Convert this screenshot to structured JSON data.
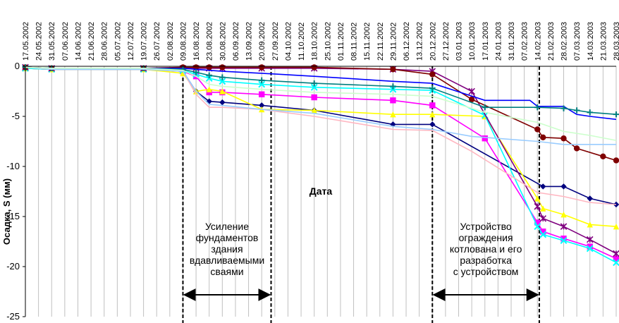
{
  "chart_data": {
    "type": "line",
    "ylabel": "Осадка, S (мм)",
    "xlabel": "Дата",
    "ylim": [
      -25,
      0
    ],
    "y_ticks": [
      0,
      -5,
      -10,
      -15,
      -20,
      -25
    ],
    "grid": "vertical",
    "x_ticks": [
      "17.05.2002",
      "24.05.2002",
      "31.05.2002",
      "07.06.2002",
      "14.06.2002",
      "21.06.2002",
      "28.06.2002",
      "05.07.2002",
      "12.07.2002",
      "19.07.2002",
      "26.07.2002",
      "02.08.2002",
      "09.08.2002",
      "16.08.2002",
      "23.08.2002",
      "30.08.2002",
      "06.09.2002",
      "13.09.2002",
      "20.09.2002",
      "27.09.2002",
      "04.10.2002",
      "11.10.2002",
      "18.10.2002",
      "25.10.2002",
      "01.11.2002",
      "08.11.2002",
      "15.11.2002",
      "22.11.2002",
      "29.11.2002",
      "06.12.2002",
      "13.12.2002",
      "20.12.2002",
      "27.12.2002",
      "03.01.2003",
      "10.01.2003",
      "17.01.2003",
      "24.01.2003",
      "31.01.2003",
      "07.02.2003",
      "14.02.2003",
      "21.02.2003",
      "28.02.2003",
      "07.03.2003",
      "14.03.2003",
      "21.03.2003",
      "28.03.2003"
    ],
    "x_start": "17.05.2002",
    "annotations": [
      {
        "lines": [
          "Усиление",
          "фундаментов",
          "здания",
          "вдавливаемыми",
          "сваями"
        ],
        "range": [
          "09.08.2002",
          "25.09.2002"
        ]
      },
      {
        "lines": [
          "Устройство",
          "ограждения",
          "котлована и его",
          "разработка",
          "с устройством"
        ],
        "range": [
          "20.12.2002",
          "15.02.2003"
        ]
      }
    ],
    "series": [
      {
        "color": "#00007f",
        "marker": "diamond",
        "x": [
          "17.05.2002",
          "31.05.2002",
          "19.07.2002",
          "09.08.2002",
          "16.08.2002",
          "23.08.2002",
          "30.08.2002",
          "20.09.2002",
          "18.10.2002",
          "29.11.2002",
          "20.12.2002",
          "17.02.2003",
          "28.02.2003",
          "14.03.2003",
          "28.03.2003"
        ],
        "y": [
          -0.2,
          -0.3,
          -0.3,
          -0.5,
          -2.5,
          -3.5,
          -3.6,
          -3.9,
          -4.4,
          -5.8,
          -5.8,
          -12.0,
          -12.0,
          -13.2,
          -13.8
        ]
      },
      {
        "color": "#ff00ff",
        "marker": "square",
        "x": [
          "17.05.2002",
          "31.05.2002",
          "19.07.2002",
          "09.08.2002",
          "16.08.2002",
          "23.08.2002",
          "30.08.2002",
          "20.09.2002",
          "18.10.2002",
          "29.11.2002",
          "20.12.2002",
          "17.01.2003",
          "14.02.2003",
          "17.02.2003",
          "28.02.2003",
          "14.03.2003",
          "28.03.2003"
        ],
        "y": [
          -0.2,
          -0.3,
          -0.3,
          -0.5,
          -1.0,
          -2.6,
          -2.6,
          -2.8,
          -3.1,
          -3.4,
          -3.9,
          -7.2,
          -15.6,
          -16.5,
          -17.2,
          -18.0,
          -19.2
        ]
      },
      {
        "color": "#ffff00",
        "marker": "triangle",
        "x": [
          "17.05.2002",
          "31.05.2002",
          "19.07.2002",
          "09.08.2002",
          "16.08.2002",
          "23.08.2002",
          "30.08.2002",
          "20.09.2002",
          "18.10.2002",
          "29.11.2002",
          "20.12.2002",
          "17.01.2003",
          "14.02.2003",
          "17.02.2003",
          "28.02.2003",
          "14.03.2003",
          "28.03.2003"
        ],
        "y": [
          -0.2,
          -0.3,
          -0.3,
          -0.7,
          -2.5,
          -2.3,
          -2.5,
          -4.3,
          -4.4,
          -4.8,
          -4.8,
          -5.0,
          -13.2,
          -14.2,
          -14.8,
          -15.8,
          -16.0
        ]
      },
      {
        "color": "#00ffff",
        "marker": "x",
        "x": [
          "17.05.2002",
          "31.05.2002",
          "19.07.2002",
          "09.08.2002",
          "16.08.2002",
          "23.08.2002",
          "30.08.2002",
          "20.09.2002",
          "18.10.2002",
          "29.11.2002",
          "20.12.2002",
          "17.01.2003",
          "14.02.2003",
          "17.02.2003",
          "28.02.2003",
          "14.03.2003",
          "28.03.2003"
        ],
        "y": [
          -0.2,
          -0.3,
          -0.3,
          -0.4,
          -0.8,
          -1.2,
          -1.5,
          -1.8,
          -2.1,
          -2.3,
          -2.4,
          -4.9,
          -16.0,
          -16.8,
          -17.4,
          -18.2,
          -19.6
        ]
      },
      {
        "color": "#7f007f",
        "marker": "star",
        "x": [
          "17.05.2002",
          "31.05.2002",
          "19.07.2002",
          "09.08.2002",
          "16.08.2002",
          "23.08.2002",
          "30.08.2002",
          "20.09.2002",
          "18.10.2002",
          "29.11.2002",
          "20.12.2002",
          "10.01.2003",
          "14.02.2003",
          "17.02.2003",
          "28.02.2003",
          "14.03.2003",
          "28.03.2003"
        ],
        "y": [
          -0.1,
          -0.2,
          -0.2,
          -0.2,
          -0.2,
          -0.2,
          -0.2,
          -0.2,
          -0.2,
          -0.3,
          -0.5,
          -2.5,
          -14.0,
          -15.2,
          -16.0,
          -17.3,
          -18.7
        ]
      },
      {
        "color": "#7f0000",
        "marker": "circle",
        "x": [
          "17.05.2002",
          "31.05.2002",
          "19.07.2002",
          "09.08.2002",
          "16.08.2002",
          "23.08.2002",
          "30.08.2002",
          "20.09.2002",
          "18.10.2002",
          "29.11.2002",
          "20.12.2002",
          "10.01.2003",
          "14.02.2003",
          "17.02.2003",
          "28.02.2003",
          "07.03.2003",
          "21.03.2003",
          "28.03.2003"
        ],
        "y": [
          -0.1,
          -0.2,
          -0.2,
          -0.1,
          -0.1,
          -0.1,
          -0.1,
          -0.1,
          -0.1,
          -0.3,
          -0.8,
          -3.3,
          -6.3,
          -7.1,
          -7.2,
          -8.2,
          -9.0,
          -9.4
        ]
      },
      {
        "color": "#0000ff",
        "marker": "line",
        "x": [
          "17.05.2002",
          "31.05.2002",
          "19.07.2002",
          "09.08.2002",
          "16.08.2002",
          "23.08.2002",
          "30.08.2002",
          "20.09.2002",
          "18.10.2002",
          "29.11.2002",
          "20.12.2002",
          "17.01.2003",
          "10.02.2003",
          "14.02.2003",
          "28.02.2003",
          "07.03.2003",
          "14.03.2003",
          "28.03.2003"
        ],
        "y": [
          -0.1,
          -0.2,
          -0.2,
          -0.2,
          -0.3,
          -0.4,
          -0.5,
          -0.7,
          -1.0,
          -1.5,
          -1.7,
          -3.4,
          -3.4,
          -4.0,
          -4.0,
          -4.8,
          -5.0,
          -5.3
        ]
      },
      {
        "color": "#007f7f",
        "marker": "plus",
        "x": [
          "17.05.2002",
          "31.05.2002",
          "19.07.2002",
          "09.08.2002",
          "16.08.2002",
          "23.08.2002",
          "30.08.2002",
          "20.09.2002",
          "18.10.2002",
          "29.11.2002",
          "20.12.2002",
          "17.01.2003",
          "14.02.2003",
          "28.02.2003",
          "07.03.2003",
          "14.03.2003",
          "28.03.2003"
        ],
        "y": [
          -0.1,
          -0.2,
          -0.2,
          -0.3,
          -0.6,
          -0.9,
          -1.1,
          -1.4,
          -1.7,
          -2.0,
          -2.2,
          -4.1,
          -4.1,
          -4.2,
          -4.4,
          -4.6,
          -4.8
        ]
      },
      {
        "color": "#ffb6c1",
        "marker": "line",
        "x": [
          "17.05.2002",
          "31.05.2002",
          "19.07.2002",
          "09.08.2002",
          "16.08.2002",
          "23.08.2002",
          "30.08.2002",
          "20.09.2002",
          "18.10.2002",
          "29.11.2002",
          "20.12.2002",
          "10.01.2003",
          "14.02.2003",
          "28.02.2003",
          "14.03.2003",
          "28.03.2003"
        ],
        "y": [
          -0.1,
          -0.3,
          -0.3,
          -0.5,
          -2.8,
          -4.1,
          -4.1,
          -4.3,
          -5.0,
          -6.3,
          -6.4,
          -8.5,
          -12.6,
          -13.0,
          -13.6,
          -13.8
        ]
      },
      {
        "color": "#99ccff",
        "marker": "line",
        "x": [
          "17.05.2002",
          "31.05.2002",
          "19.07.2002",
          "09.08.2002",
          "16.08.2002",
          "23.08.2002",
          "30.08.2002",
          "20.09.2002",
          "18.10.2002",
          "29.11.2002",
          "20.12.2002",
          "10.01.2003",
          "14.02.2003",
          "28.02.2003",
          "14.03.2003",
          "28.03.2003"
        ],
        "y": [
          -0.1,
          -0.3,
          -0.3,
          -0.5,
          -2.5,
          -3.8,
          -3.9,
          -4.3,
          -4.7,
          -6.0,
          -6.3,
          -7.0,
          -7.5,
          -7.8,
          -7.8,
          -7.8
        ]
      },
      {
        "color": "#ccffcc",
        "marker": "line",
        "x": [
          "17.05.2002",
          "31.05.2002",
          "19.07.2002",
          "09.08.2002",
          "16.08.2002",
          "23.08.2002",
          "30.08.2002",
          "20.09.2002",
          "18.10.2002",
          "29.11.2002",
          "20.12.2002",
          "17.01.2003",
          "14.02.2003",
          "28.02.2003",
          "14.03.2003",
          "28.03.2003"
        ],
        "y": [
          -0.1,
          -0.2,
          -0.2,
          -0.4,
          -1.0,
          -1.8,
          -2.0,
          -2.3,
          -2.6,
          -2.8,
          -3.0,
          -4.6,
          -5.6,
          -6.5,
          -6.9,
          -7.4
        ]
      }
    ]
  }
}
